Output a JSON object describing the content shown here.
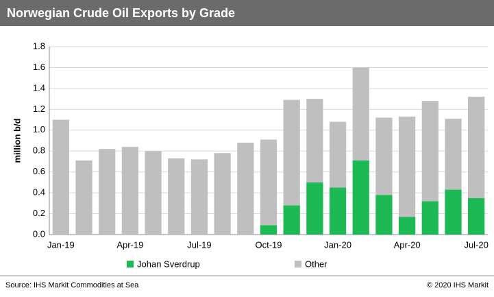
{
  "chart_data": {
    "type": "stacked_bar",
    "title": "Norwegian Crude Oil Exports by Grade",
    "y_label": "million b/d",
    "source": "Source: IHS Markit Commodities at Sea",
    "copyright": "© 2020 IHS Markit",
    "categories": [
      "Jan-19",
      null,
      null,
      "Apr-19",
      null,
      null,
      "Jul-19",
      null,
      null,
      "Oct-19",
      null,
      null,
      "Jan-20",
      null,
      null,
      "Apr-20",
      null,
      null,
      "Jul-20"
    ],
    "series": [
      {
        "name": "Johan Sverdrup",
        "color": "#1db954",
        "values": [
          0,
          0,
          0,
          0,
          0,
          0,
          0,
          0,
          0,
          0.09,
          0.28,
          0.5,
          0.45,
          0.71,
          0.38,
          0.17,
          0.32,
          0.43,
          0.35
        ]
      },
      {
        "name": "Other",
        "color": "#bfbfbf",
        "values": [
          1.1,
          0.71,
          0.82,
          0.84,
          0.8,
          0.73,
          0.72,
          0.78,
          0.88,
          0.82,
          1.01,
          0.8,
          0.63,
          0.89,
          0.74,
          0.96,
          0.96,
          0.68,
          0.97
        ]
      }
    ],
    "ylim": [
      0,
      1.8
    ],
    "yticks": [
      {
        "value": 0,
        "label": "0.0"
      },
      0.2,
      0.4,
      0.6,
      0.8,
      {
        "value": 1,
        "label": "1.0"
      },
      1.2,
      1.4,
      1.6,
      1.8
    ],
    "grid": true
  }
}
